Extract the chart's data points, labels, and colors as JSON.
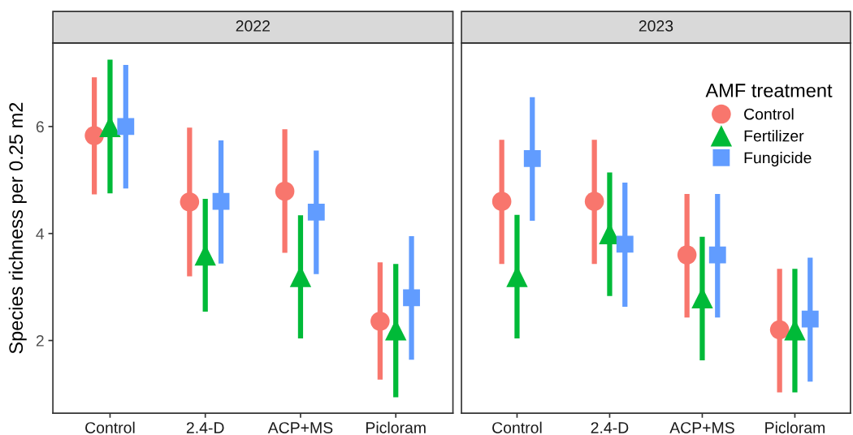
{
  "chart_data": [
    {
      "type": "scatter",
      "title": "2022",
      "ylabel": "Species richness per 0.25 m2",
      "categories": [
        "Control",
        "2.4-D",
        "ACP+MS",
        "Picloram"
      ],
      "ylim": [
        0.64,
        7.56
      ],
      "yticks": [
        2,
        4,
        6
      ],
      "grid": false,
      "series": [
        {
          "color": "#f8766d",
          "marker": "circle",
          "values": [
            5.83,
            4.59,
            4.79,
            2.36
          ],
          "errors": [
            [
              4.73,
              6.92
            ],
            [
              3.2,
              5.98
            ],
            [
              3.64,
              5.95
            ],
            [
              1.27,
              3.46
            ]
          ]
        },
        {
          "color": "#00ba38",
          "marker": "triangle",
          "values": [
            6.0,
            3.6,
            3.2,
            2.2
          ],
          "errors": [
            [
              4.75,
              7.25
            ],
            [
              2.54,
              4.65
            ],
            [
              2.04,
              4.34
            ],
            [
              0.94,
              3.43
            ]
          ]
        },
        {
          "color": "#619cff",
          "marker": "square",
          "values": [
            6.0,
            4.6,
            4.4,
            2.8
          ],
          "errors": [
            [
              4.84,
              7.15
            ],
            [
              3.44,
              5.74
            ],
            [
              3.24,
              5.55
            ],
            [
              1.64,
              3.95
            ]
          ]
        }
      ]
    },
    {
      "type": "scatter",
      "title": "2023",
      "categories": [
        "Control",
        "2.4-D",
        "ACP+MS",
        "Picloram"
      ],
      "ylim": [
        0.64,
        7.56
      ],
      "yticks": [
        2,
        4,
        6
      ],
      "grid": false,
      "legend": "top right",
      "legend_title": "AMF treatment",
      "tick_labels": "x",
      "series": [
        {
          "name": "Control",
          "color": "#f8766d",
          "marker": "circle",
          "values": [
            4.6,
            4.6,
            3.6,
            2.2
          ],
          "errors": [
            [
              3.43,
              5.75
            ],
            [
              3.43,
              5.75
            ],
            [
              2.43,
              4.74
            ],
            [
              1.03,
              3.34
            ]
          ]
        },
        {
          "name": "Fertilizer",
          "color": "#00ba38",
          "marker": "triangle",
          "values": [
            3.2,
            4.0,
            2.8,
            2.2
          ],
          "errors": [
            [
              2.04,
              4.35
            ],
            [
              2.83,
              5.14
            ],
            [
              1.63,
              3.94
            ],
            [
              1.03,
              3.34
            ]
          ]
        },
        {
          "name": "Fungicide",
          "color": "#619cff",
          "marker": "square",
          "values": [
            5.4,
            3.8,
            3.6,
            2.4
          ],
          "errors": [
            [
              4.24,
              6.55
            ],
            [
              2.63,
              4.95
            ],
            [
              2.43,
              4.74
            ],
            [
              1.23,
              3.55
            ]
          ]
        }
      ]
    }
  ]
}
